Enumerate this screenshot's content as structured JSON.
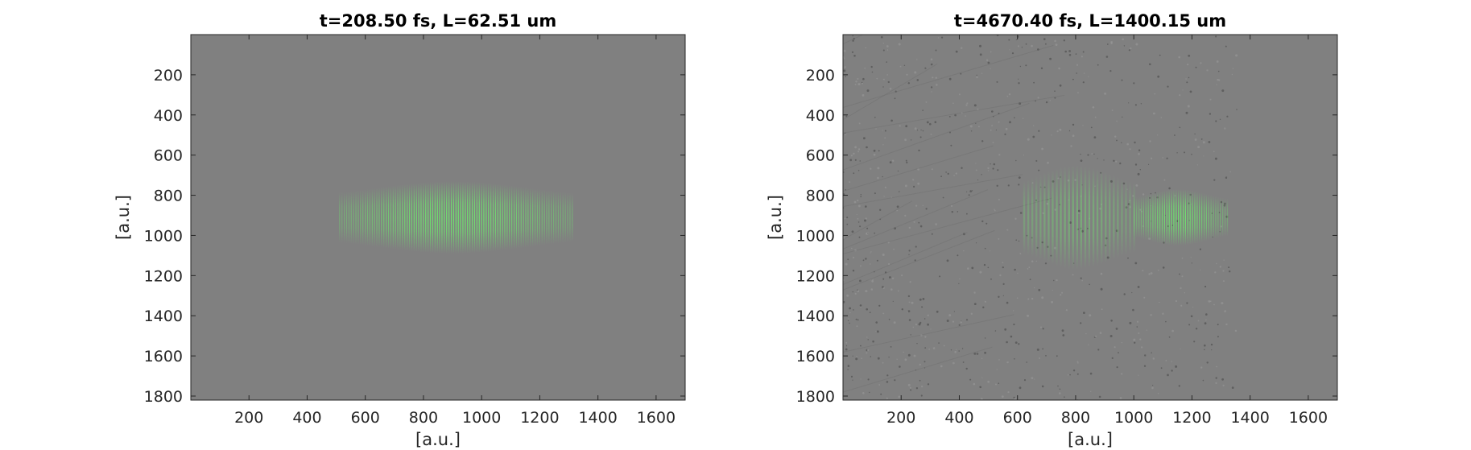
{
  "chart_data": [
    {
      "type": "heatmap",
      "title": "t=208.50 fs, L=62.51 um",
      "xlabel": "[a.u.]",
      "ylabel": "[a.u.]",
      "xlim": [
        0,
        1700
      ],
      "ylim": [
        0,
        1820
      ],
      "y_reversed": true,
      "xticks": [
        200,
        400,
        600,
        800,
        1000,
        1200,
        1400,
        1600
      ],
      "yticks": [
        200,
        400,
        600,
        800,
        1000,
        1200,
        1400,
        1600,
        1800
      ],
      "background_color": "#808080",
      "field_color": "#6fe46f",
      "pulses": [
        {
          "x_min": 510,
          "x_max": 1310,
          "y_center": 910,
          "y_half_height": 180,
          "peak_x": 900,
          "intensity": 1.0,
          "fringe_spacing": 8
        }
      ],
      "noise_speckle": false
    },
    {
      "type": "heatmap",
      "title": "t=4670.40 fs, L=1400.15 um",
      "xlabel": "[a.u.]",
      "ylabel": "[a.u.]",
      "xlim": [
        0,
        1700
      ],
      "ylim": [
        0,
        1820
      ],
      "y_reversed": true,
      "xticks": [
        200,
        400,
        600,
        800,
        1000,
        1200,
        1400,
        1600
      ],
      "yticks": [
        200,
        400,
        600,
        800,
        1000,
        1200,
        1400,
        1600,
        1800
      ],
      "background_color": "#808080",
      "field_color": "#6fe46f",
      "pulses": [
        {
          "x_min": 1000,
          "x_max": 1320,
          "y_center": 910,
          "y_half_height": 140,
          "peak_x": 1150,
          "intensity": 1.0,
          "fringe_spacing": 8
        },
        {
          "x_min": 620,
          "x_max": 1000,
          "y_center": 910,
          "y_half_height": 260,
          "peak_x": 800,
          "intensity": 0.25,
          "fringe_spacing": 14
        }
      ],
      "noise_speckle": true
    }
  ]
}
